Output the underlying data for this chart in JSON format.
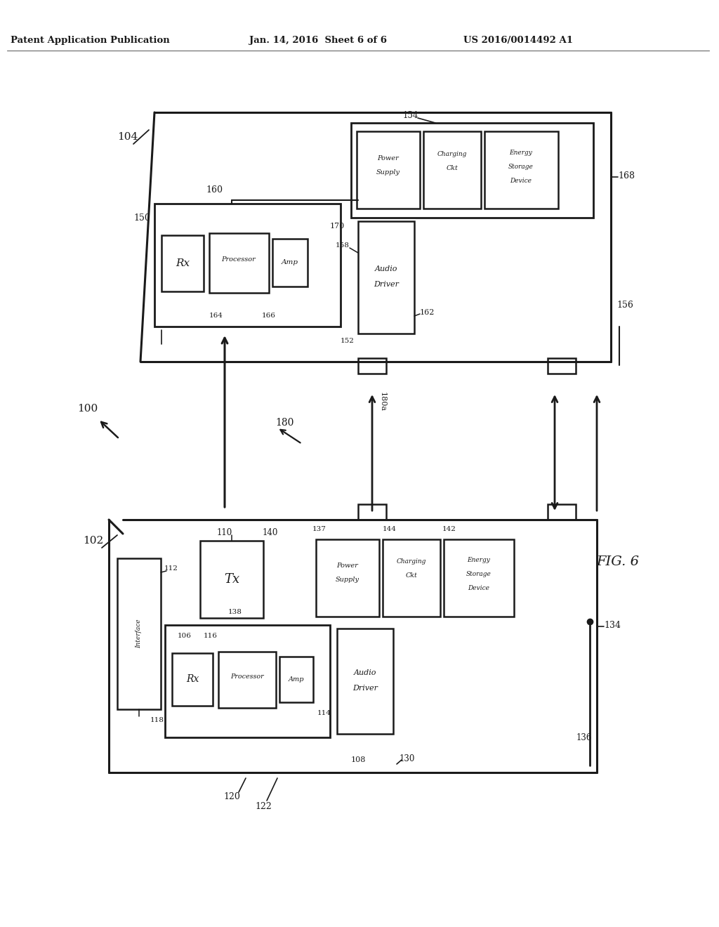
{
  "bg": "#ffffff",
  "lc": "#1a1a1a",
  "header_left": "Patent Application Publication",
  "header_mid": "Jan. 14, 2016  Sheet 6 of 6",
  "header_right": "US 2016/0014492 A1",
  "fig_label": "FIG. 6"
}
